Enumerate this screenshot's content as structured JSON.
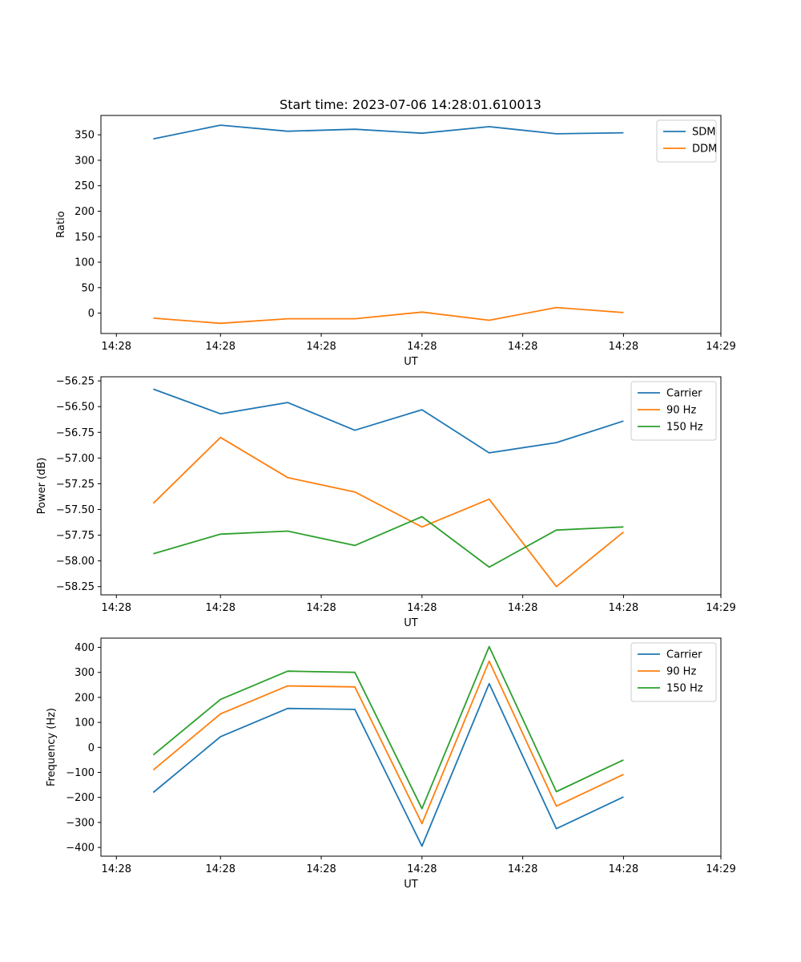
{
  "figure_title": "Start time: 2023-07-06 14:28:01.610013",
  "chart_data": [
    {
      "type": "line",
      "title": "Start time: 2023-07-06 14:28:01.610013",
      "xlabel": "UT",
      "ylabel": "Ratio",
      "x": [
        1,
        2,
        3,
        4,
        5,
        6,
        7,
        8
      ],
      "xlim": [
        0.22,
        9.45
      ],
      "ylim": [
        -40,
        388
      ],
      "xticks": [
        0.45,
        2.0,
        3.5,
        5.0,
        6.5,
        8.0,
        9.45
      ],
      "xtick_labels": [
        "14:28",
        "14:28",
        "14:28",
        "14:28",
        "14:28",
        "14:28",
        "14:29"
      ],
      "yticks": [
        0,
        50,
        100,
        150,
        200,
        250,
        300,
        350
      ],
      "ytick_labels": [
        "0",
        "50",
        "100",
        "150",
        "200",
        "250",
        "300",
        "350"
      ],
      "legend": "top-right",
      "series": [
        {
          "name": "SDM",
          "color": "#1f77b4",
          "values": [
            342,
            369,
            357,
            361,
            353,
            366,
            352,
            354
          ]
        },
        {
          "name": "DDM",
          "color": "#ff7f0e",
          "values": [
            -10,
            -20,
            -11,
            -11,
            2,
            -14,
            11,
            1
          ]
        }
      ]
    },
    {
      "type": "line",
      "xlabel": "UT",
      "ylabel": "Power (dB)",
      "x": [
        1,
        2,
        3,
        4,
        5,
        6,
        7,
        8
      ],
      "xlim": [
        0.22,
        9.45
      ],
      "ylim": [
        -58.33,
        -56.21
      ],
      "xticks": [
        0.45,
        2.0,
        3.5,
        5.0,
        6.5,
        8.0,
        9.45
      ],
      "xtick_labels": [
        "14:28",
        "14:28",
        "14:28",
        "14:28",
        "14:28",
        "14:28",
        "14:29"
      ],
      "yticks": [
        -58.25,
        -58.0,
        -57.75,
        -57.5,
        -57.25,
        -57.0,
        -56.75,
        -56.5,
        -56.25
      ],
      "ytick_labels": [
        "−58.25",
        "−58.00",
        "−57.75",
        "−57.50",
        "−57.25",
        "−57.00",
        "−56.75",
        "−56.50",
        "−56.25"
      ],
      "legend": "top-right",
      "series": [
        {
          "name": "Carrier",
          "color": "#1f77b4",
          "values": [
            -56.33,
            -56.57,
            -56.46,
            -56.73,
            -56.53,
            -56.95,
            -56.85,
            -56.64
          ]
        },
        {
          "name": "90 Hz",
          "color": "#ff7f0e",
          "values": [
            -57.44,
            -56.8,
            -57.19,
            -57.33,
            -57.67,
            -57.4,
            -58.25,
            -57.72
          ]
        },
        {
          "name": "150 Hz",
          "color": "#2ca02c",
          "values": [
            -57.93,
            -57.74,
            -57.71,
            -57.85,
            -57.57,
            -58.06,
            -57.7,
            -57.67
          ]
        }
      ]
    },
    {
      "type": "line",
      "xlabel": "UT",
      "ylabel": "Frequency (Hz)",
      "x": [
        1,
        2,
        3,
        4,
        5,
        6,
        7,
        8
      ],
      "xlim": [
        0.22,
        9.45
      ],
      "ylim": [
        -435,
        437
      ],
      "xticks": [
        0.45,
        2.0,
        3.5,
        5.0,
        6.5,
        8.0,
        9.45
      ],
      "xtick_labels": [
        "14:28",
        "14:28",
        "14:28",
        "14:28",
        "14:28",
        "14:28",
        "14:29"
      ],
      "yticks": [
        -400,
        -300,
        -200,
        -100,
        0,
        100,
        200,
        300,
        400
      ],
      "ytick_labels": [
        "−400",
        "−300",
        "−200",
        "−100",
        "0",
        "100",
        "200",
        "300",
        "400"
      ],
      "legend": "top-right",
      "series": [
        {
          "name": "Carrier",
          "color": "#1f77b4",
          "values": [
            -180,
            43,
            156,
            152,
            -395,
            255,
            -325,
            -198
          ]
        },
        {
          "name": "90 Hz",
          "color": "#ff7f0e",
          "values": [
            -90,
            134,
            246,
            242,
            -305,
            345,
            -235,
            -108
          ]
        },
        {
          "name": "150 Hz",
          "color": "#2ca02c",
          "values": [
            -30,
            192,
            305,
            300,
            -245,
            403,
            -177,
            -50
          ]
        }
      ]
    }
  ]
}
